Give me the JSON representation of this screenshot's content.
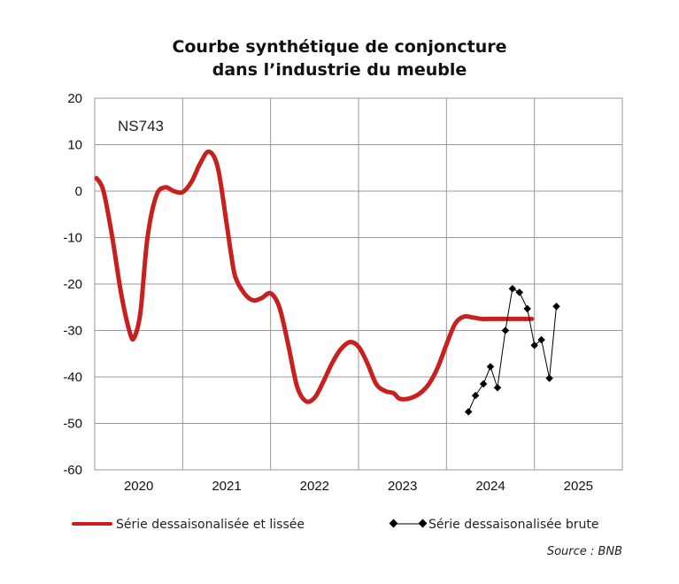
{
  "chart_data": {
    "type": "line",
    "title_line1": "Courbe synthétique de conjoncture",
    "title_line2": "dans l’industrie du meuble",
    "annotation": "NS743",
    "source": "Source : BNB",
    "ylim": [
      -60,
      20
    ],
    "yticks": [
      20,
      10,
      0,
      -10,
      -20,
      -30,
      -40,
      -50,
      -60
    ],
    "xlim": [
      2019.5,
      2025.5
    ],
    "xticks": [
      {
        "label": "2020",
        "at": 2020
      },
      {
        "label": "2021",
        "at": 2021
      },
      {
        "label": "2022",
        "at": 2022
      },
      {
        "label": "2023",
        "at": 2023
      },
      {
        "label": "2024",
        "at": 2024
      },
      {
        "label": "2025",
        "at": 2025
      }
    ],
    "grid": true,
    "legend_position": "bottom",
    "colors": {
      "smoothed": "#c8201f",
      "raw": "#000000",
      "grid": "#999999"
    },
    "series": [
      {
        "name": "Série dessaisonalisée et lissée",
        "style": "thick-line",
        "x": [
          2019.52,
          2019.6,
          2019.7,
          2019.8,
          2019.9,
          2019.95,
          2020.02,
          2020.1,
          2020.2,
          2020.3,
          2020.4,
          2020.5,
          2020.6,
          2020.7,
          2020.8,
          2020.9,
          2021.0,
          2021.05,
          2021.1,
          2021.2,
          2021.3,
          2021.4,
          2021.5,
          2021.6,
          2021.7,
          2021.8,
          2021.9,
          2022.0,
          2022.1,
          2022.2,
          2022.3,
          2022.4,
          2022.5,
          2022.6,
          2022.7,
          2022.8,
          2022.9,
          2022.95,
          2023.0,
          2023.1,
          2023.2,
          2023.3,
          2023.4,
          2023.5,
          2023.6,
          2023.7,
          2023.8,
          2023.9,
          2024.0,
          2024.1,
          2024.2,
          2024.3,
          2024.4,
          2024.47
        ],
        "y": [
          2.8,
          0.0,
          -10.0,
          -22.0,
          -30.5,
          -31.5,
          -26.0,
          -10.0,
          -1.0,
          0.8,
          0.0,
          -0.2,
          2.0,
          6.0,
          8.5,
          5.0,
          -7.0,
          -13.5,
          -18.5,
          -22.0,
          -23.5,
          -23.0,
          -22.0,
          -25.0,
          -33.0,
          -42.0,
          -45.2,
          -44.5,
          -41.0,
          -37.0,
          -34.0,
          -32.5,
          -33.5,
          -37.0,
          -41.5,
          -43.0,
          -43.5,
          -44.5,
          -44.8,
          -44.5,
          -43.5,
          -41.5,
          -38.0,
          -33.0,
          -28.5,
          -27.0,
          -27.2,
          -27.5,
          -27.5,
          -27.5,
          -27.5,
          -27.5,
          -27.5,
          -27.5
        ]
      },
      {
        "name": "Série dessaisonalisée brute",
        "style": "thin-line-markers",
        "x": [
          2023.75,
          2023.83,
          2023.92,
          2024.0,
          2024.08,
          2024.17,
          2024.25,
          2024.33,
          2024.42,
          2024.5,
          2024.58,
          2024.67,
          2024.75
        ],
        "y": [
          -47.5,
          -44.0,
          -41.5,
          -37.8,
          -42.3,
          -30.0,
          -21.0,
          -21.8,
          -25.3,
          -33.2,
          -32.0,
          -40.3,
          -24.8
        ]
      }
    ]
  }
}
